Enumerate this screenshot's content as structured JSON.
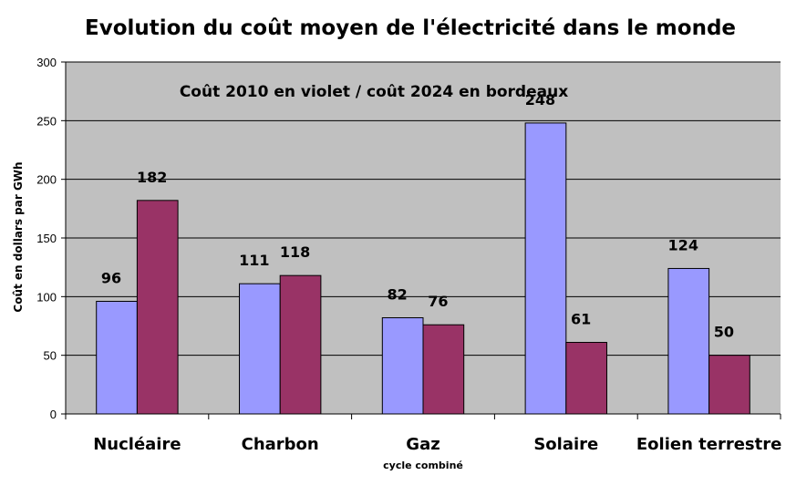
{
  "chart_data": {
    "type": "bar",
    "title": "Evolution du coût moyen de l'électricité dans le monde",
    "subtitle": "Coût 2010 en violet / coût 2024 en bordeaux",
    "ylabel": "Coût en dollars par GWh",
    "xlabel": "",
    "ylim": [
      0,
      300
    ],
    "yticks": [
      0,
      50,
      100,
      150,
      200,
      250,
      300
    ],
    "grid": true,
    "categories": [
      "Nucléaire",
      "Charbon",
      "Gaz",
      "Solaire",
      "Eolien terrestre"
    ],
    "category_sublabels": [
      "",
      "",
      "cycle combiné",
      "",
      ""
    ],
    "series": [
      {
        "values": [
          96,
          111,
          82,
          248,
          124
        ]
      },
      {
        "values": [
          182,
          118,
          76,
          61,
          50
        ]
      }
    ]
  },
  "colors": {
    "plot_background": "#c0c0c0",
    "series_2010": "#9999ff",
    "series_2024": "#993366",
    "gridline": "#000000",
    "bar_border": "#000000"
  }
}
